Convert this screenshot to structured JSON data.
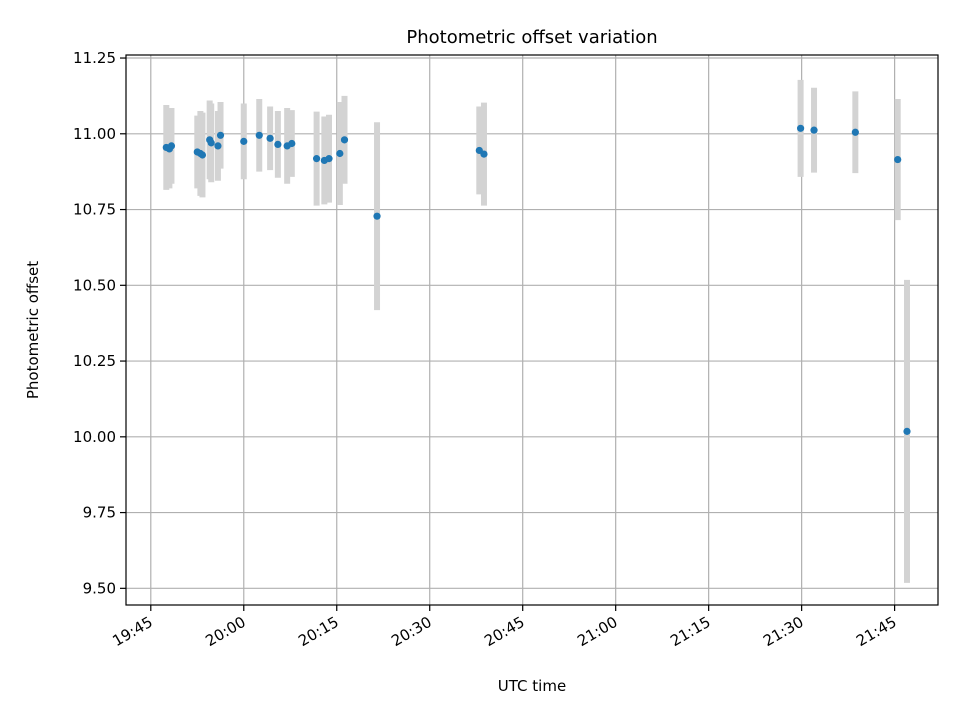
{
  "chart_data": {
    "type": "scatter",
    "title": "Photometric offset variation",
    "xlabel": "UTC time",
    "ylabel": "Photometric offset",
    "xlim": [
      "19:41",
      "21:52"
    ],
    "ylim": [
      9.445,
      11.26
    ],
    "x_ticks": [
      "19:45",
      "20:00",
      "20:15",
      "20:30",
      "20:45",
      "21:00",
      "21:15",
      "21:30",
      "21:45"
    ],
    "y_ticks": [
      "9.50",
      "9.75",
      "10.00",
      "10.25",
      "10.50",
      "10.75",
      "11.00",
      "11.25"
    ],
    "grid": true,
    "colors": {
      "point": "#1f77b4",
      "errorbar": "#d3d3d3",
      "grid": "#b0b0b0"
    },
    "points": [
      {
        "x": "19:47:30",
        "y": 10.955,
        "err": 0.14
      },
      {
        "x": "19:48:00",
        "y": 10.95,
        "err": 0.13
      },
      {
        "x": "19:48:20",
        "y": 10.96,
        "err": 0.125
      },
      {
        "x": "19:52:30",
        "y": 10.94,
        "err": 0.12
      },
      {
        "x": "19:53:00",
        "y": 10.935,
        "err": 0.14
      },
      {
        "x": "19:53:20",
        "y": 10.93,
        "err": 0.14
      },
      {
        "x": "19:54:30",
        "y": 10.98,
        "err": 0.13
      },
      {
        "x": "19:54:45",
        "y": 10.97,
        "err": 0.13
      },
      {
        "x": "19:55:50",
        "y": 10.96,
        "err": 0.115
      },
      {
        "x": "19:56:15",
        "y": 10.995,
        "err": 0.11
      },
      {
        "x": "20:00:00",
        "y": 10.975,
        "err": 0.125
      },
      {
        "x": "20:02:30",
        "y": 10.995,
        "err": 0.12
      },
      {
        "x": "20:04:15",
        "y": 10.985,
        "err": 0.105
      },
      {
        "x": "20:05:30",
        "y": 10.965,
        "err": 0.11
      },
      {
        "x": "20:07:00",
        "y": 10.96,
        "err": 0.125
      },
      {
        "x": "20:07:45",
        "y": 10.968,
        "err": 0.11
      },
      {
        "x": "20:11:45",
        "y": 10.918,
        "err": 0.155
      },
      {
        "x": "20:13:00",
        "y": 10.912,
        "err": 0.145
      },
      {
        "x": "20:13:45",
        "y": 10.918,
        "err": 0.145
      },
      {
        "x": "20:15:30",
        "y": 10.935,
        "err": 0.17
      },
      {
        "x": "20:16:15",
        "y": 10.98,
        "err": 0.145
      },
      {
        "x": "20:21:30",
        "y": 10.728,
        "err": 0.31
      },
      {
        "x": "20:38:00",
        "y": 10.945,
        "err": 0.145
      },
      {
        "x": "20:38:45",
        "y": 10.933,
        "err": 0.17
      },
      {
        "x": "21:29:50",
        "y": 11.018,
        "err": 0.16
      },
      {
        "x": "21:32:00",
        "y": 11.012,
        "err": 0.14
      },
      {
        "x": "21:38:40",
        "y": 11.005,
        "err": 0.135
      },
      {
        "x": "21:45:30",
        "y": 10.915,
        "err": 0.2
      },
      {
        "x": "21:47:00",
        "y": 10.018,
        "err": 0.5
      }
    ]
  }
}
